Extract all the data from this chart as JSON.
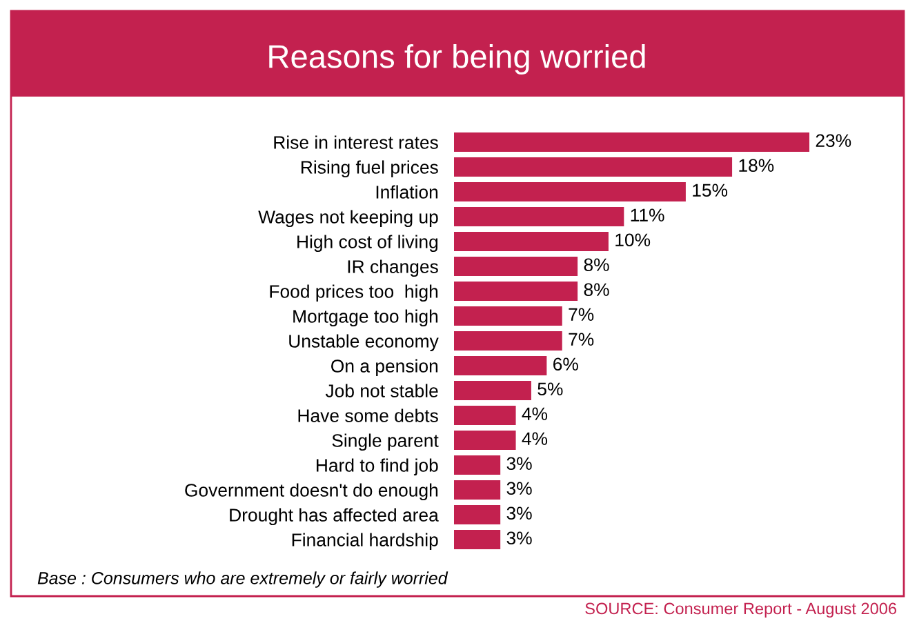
{
  "chart_data": {
    "type": "bar",
    "orientation": "horizontal",
    "title": "Reasons for being worried",
    "categories": [
      "Rise in interest rates",
      "Rising fuel prices",
      "Inflation",
      "Wages not keeping up",
      "High cost of living",
      "IR changes",
      "Food prices too  high",
      "Mortgage too high",
      "Unstable economy",
      "On a pension",
      "Job not stable",
      "Have some debts",
      "Single parent",
      "Hard to find job",
      "Government doesn't do enough",
      "Drought has affected area",
      "Financial hardship"
    ],
    "values": [
      23,
      18,
      15,
      11,
      10,
      8,
      8,
      7,
      7,
      6,
      5,
      4,
      4,
      3,
      3,
      3,
      3
    ],
    "value_labels": [
      "23%",
      "18%",
      "15%",
      "11%",
      "10%",
      "8%",
      "8%",
      "7%",
      "7%",
      "6%",
      "5%",
      "4%",
      "4%",
      "3%",
      "3%",
      "3%",
      "3%"
    ],
    "color": "#c3214f",
    "annotations": [
      "Base : Consumers who are extremely or fairly worried",
      "SOURCE: Consumer Report - August 2006"
    ]
  }
}
